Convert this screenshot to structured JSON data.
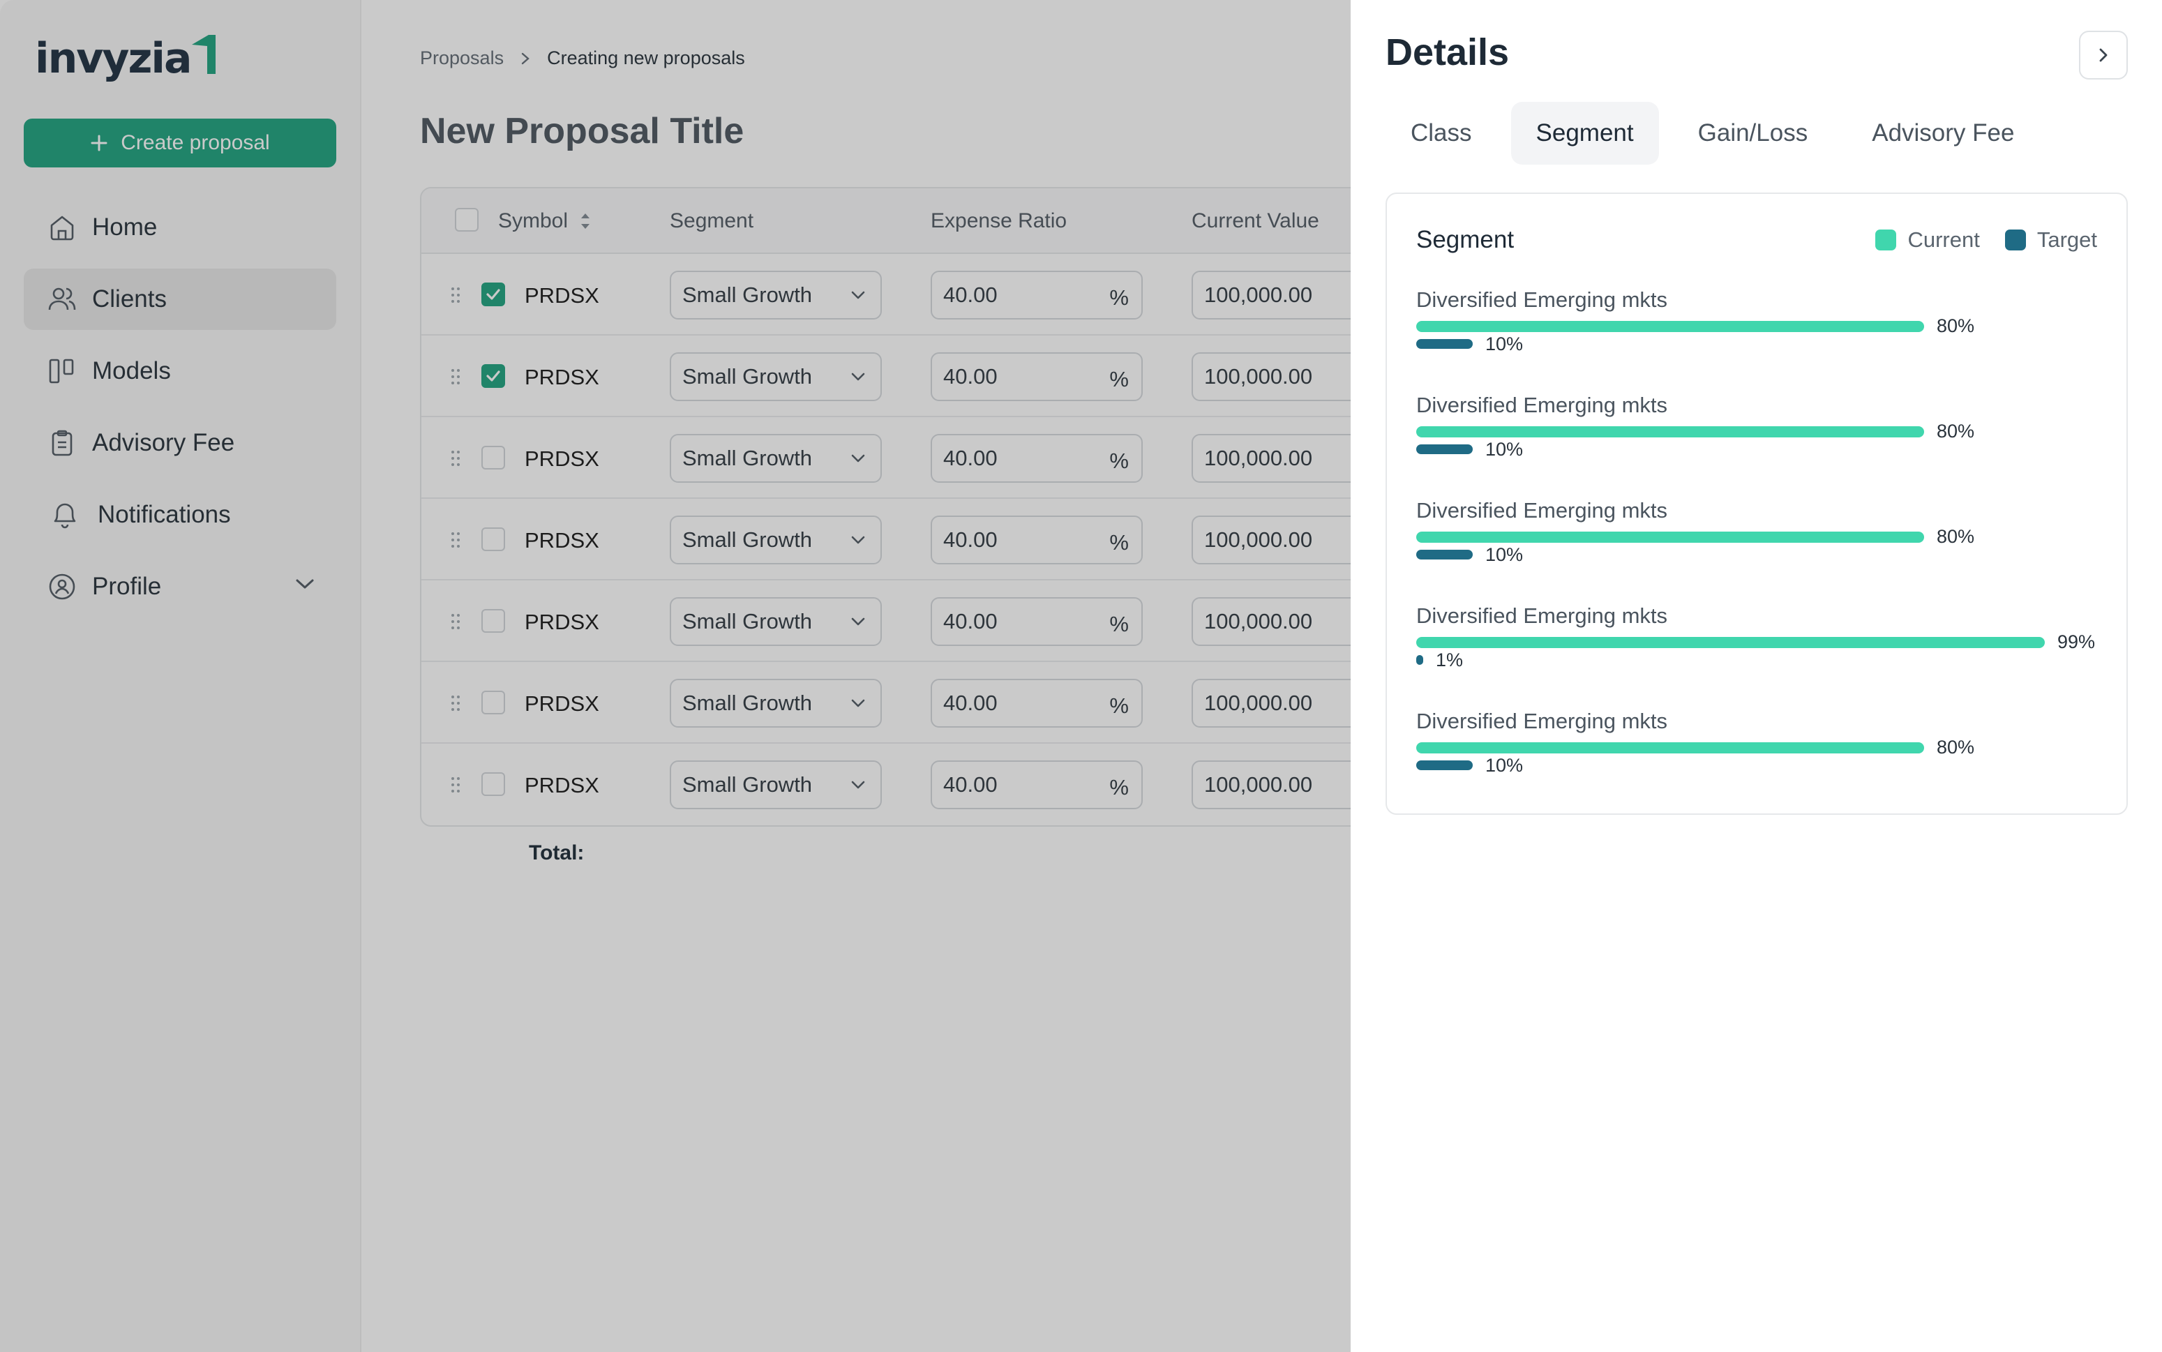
{
  "app": {
    "logo": "invyzia",
    "create_label": "Create proposal",
    "nav": [
      {
        "label": "Home",
        "icon": "home-icon"
      },
      {
        "label": "Clients",
        "icon": "users-icon",
        "active": true
      },
      {
        "label": "Models",
        "icon": "columns-icon"
      },
      {
        "label": "Advisory Fee",
        "icon": "clipboard-icon"
      },
      {
        "label": "Notifications",
        "icon": "bell-icon"
      },
      {
        "label": "Profile",
        "icon": "user-circle-icon"
      }
    ]
  },
  "breadcrumb": {
    "parent": "Proposals",
    "current": "Creating new proposals"
  },
  "page_title": "New Proposal Title",
  "table": {
    "headers": {
      "symbol": "Symbol",
      "segment": "Segment",
      "expense_ratio": "Expense Ratio",
      "current_value": "Current Value"
    },
    "rows": [
      {
        "checked": true,
        "symbol": "PRDSX",
        "segment": "Small Growth",
        "expense_ratio": "40.00",
        "unit": "%",
        "current_value": "100,000.00"
      },
      {
        "checked": true,
        "symbol": "PRDSX",
        "segment": "Small Growth",
        "expense_ratio": "40.00",
        "unit": "%",
        "current_value": "100,000.00"
      },
      {
        "checked": false,
        "symbol": "PRDSX",
        "segment": "Small Growth",
        "expense_ratio": "40.00",
        "unit": "%",
        "current_value": "100,000.00"
      },
      {
        "checked": false,
        "symbol": "PRDSX",
        "segment": "Small Growth",
        "expense_ratio": "40.00",
        "unit": "%",
        "current_value": "100,000.00"
      },
      {
        "checked": false,
        "symbol": "PRDSX",
        "segment": "Small Growth",
        "expense_ratio": "40.00",
        "unit": "%",
        "current_value": "100,000.00"
      },
      {
        "checked": false,
        "symbol": "PRDSX",
        "segment": "Small Growth",
        "expense_ratio": "40.00",
        "unit": "%",
        "current_value": "100,000.00"
      },
      {
        "checked": false,
        "symbol": "PRDSX",
        "segment": "Small Growth",
        "expense_ratio": "40.00",
        "unit": "%",
        "current_value": "100,000.00"
      }
    ],
    "total_label": "Total:"
  },
  "details": {
    "title": "Details",
    "tabs": [
      "Class",
      "Segment",
      "Gain/Loss",
      "Advisory Fee"
    ],
    "active_tab": "Segment",
    "card_title": "Segment",
    "legend": [
      {
        "label": "Current",
        "color": "#40d6ad"
      },
      {
        "label": "Target",
        "color": "#1f6b85"
      }
    ]
  },
  "chart_data": {
    "type": "bar",
    "title": "Segment",
    "series_names": [
      "Current",
      "Target"
    ],
    "categories": [
      "Diversified Emerging mkts",
      "Diversified Emerging mkts",
      "Diversified Emerging mkts",
      "Diversified Emerging mkts",
      "Diversified Emerging mkts"
    ],
    "series": [
      {
        "name": "Current",
        "values": [
          80,
          80,
          80,
          99,
          80
        ],
        "labels": [
          "80%",
          "80%",
          "80%",
          "99%",
          "80%"
        ]
      },
      {
        "name": "Target",
        "values": [
          10,
          10,
          10,
          1,
          10
        ],
        "labels": [
          "10%",
          "10%",
          "10%",
          "1%",
          "10%"
        ]
      }
    ],
    "unit": "%",
    "colors": {
      "current": "#40d6ad",
      "target": "#1f6b85"
    }
  },
  "colors": {
    "brand": "#16a07a",
    "current_bar": "#40d6ad",
    "target_bar": "#1f6b85"
  }
}
